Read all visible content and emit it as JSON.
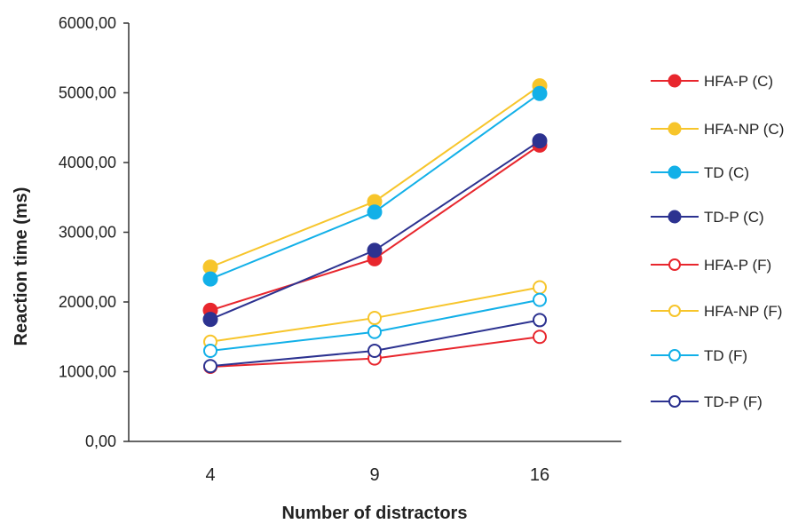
{
  "chart_data": {
    "type": "line",
    "title": "",
    "xlabel": "Number of distractors",
    "ylabel": "Reaction time (ms)",
    "categories": [
      "4",
      "9",
      "16"
    ],
    "ylim": [
      0,
      6000
    ],
    "yticks": [
      "0,00",
      "1000,00",
      "2000,00",
      "3000,00",
      "4000,00",
      "5000,00",
      "6000,00"
    ],
    "ytick_values": [
      0,
      1000,
      2000,
      3000,
      4000,
      5000,
      6000
    ],
    "grid": false,
    "legend_position": "right",
    "series": [
      {
        "name": "HFA-P (C)",
        "color": "#e8262d",
        "marker": "filled-circle",
        "values": [
          1880,
          2620,
          4250
        ]
      },
      {
        "name": "HFA-NP (C)",
        "color": "#f7c52b",
        "marker": "filled-circle",
        "values": [
          2500,
          3440,
          5100
        ]
      },
      {
        "name": "TD (C)",
        "color": "#12b0e8",
        "marker": "filled-circle",
        "values": [
          2330,
          3290,
          4990
        ]
      },
      {
        "name": "TD-P (C)",
        "color": "#2c3290",
        "marker": "filled-circle",
        "values": [
          1750,
          2740,
          4310
        ]
      },
      {
        "name": "HFA-P (F)",
        "color": "#e8262d",
        "marker": "open-circle",
        "values": [
          1070,
          1190,
          1500
        ]
      },
      {
        "name": "HFA-NP (F)",
        "color": "#f7c52b",
        "marker": "open-circle",
        "values": [
          1430,
          1770,
          2210
        ]
      },
      {
        "name": "TD (F)",
        "color": "#12b0e8",
        "marker": "open-circle",
        "values": [
          1300,
          1570,
          2030
        ]
      },
      {
        "name": "TD-P (F)",
        "color": "#2c3290",
        "marker": "open-circle",
        "values": [
          1080,
          1300,
          1740
        ]
      }
    ]
  }
}
